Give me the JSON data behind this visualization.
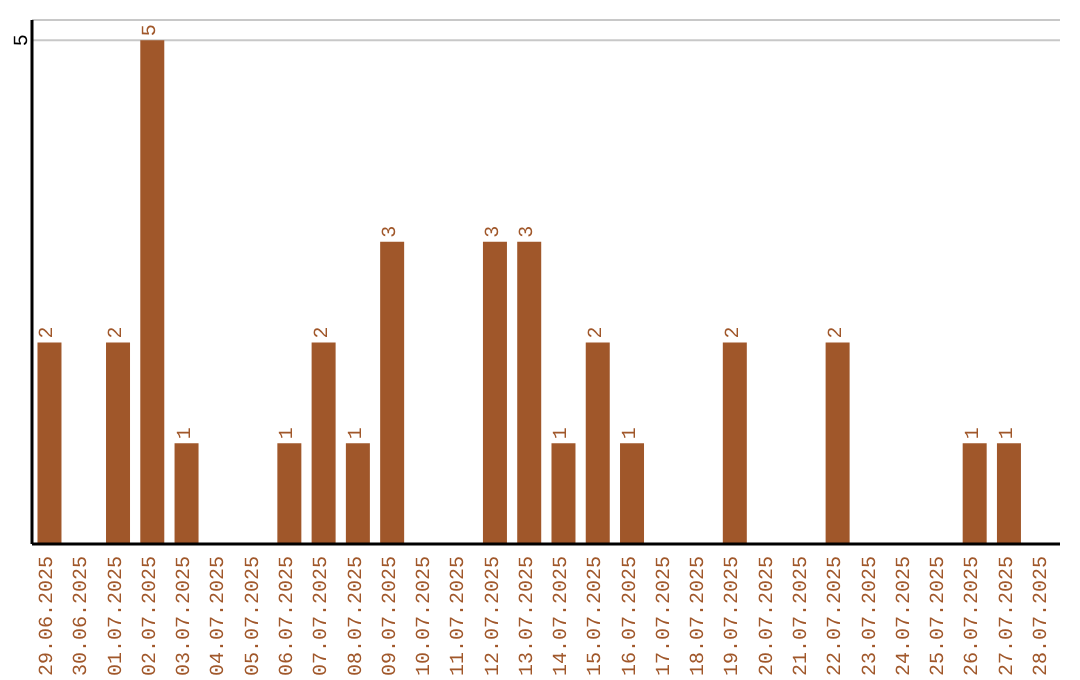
{
  "chart_data": {
    "type": "bar",
    "categories": [
      "29.06.2025",
      "30.06.2025",
      "01.07.2025",
      "02.07.2025",
      "03.07.2025",
      "04.07.2025",
      "05.07.2025",
      "06.07.2025",
      "07.07.2025",
      "08.07.2025",
      "09.07.2025",
      "10.07.2025",
      "11.07.2025",
      "12.07.2025",
      "13.07.2025",
      "14.07.2025",
      "15.07.2025",
      "16.07.2025",
      "17.07.2025",
      "18.07.2025",
      "19.07.2025",
      "20.07.2025",
      "21.07.2025",
      "22.07.2025",
      "23.07.2025",
      "24.07.2025",
      "25.07.2025",
      "26.07.2025",
      "27.07.2025",
      "28.07.2025"
    ],
    "values": [
      2,
      0,
      2,
      5,
      1,
      0,
      0,
      1,
      2,
      1,
      3,
      0,
      0,
      3,
      3,
      1,
      2,
      1,
      0,
      0,
      2,
      0,
      0,
      2,
      0,
      0,
      0,
      1,
      1,
      0
    ],
    "value_labels": [
      "2",
      null,
      "2",
      "5",
      "1",
      null,
      null,
      "1",
      "2",
      "1",
      "3",
      null,
      null,
      "3",
      "3",
      "1",
      "2",
      "1",
      null,
      null,
      "2",
      null,
      null,
      "2",
      null,
      null,
      null,
      "1",
      "1",
      null
    ],
    "color": "#a0572a",
    "ylim": [
      0,
      5.2
    ],
    "yticks": [
      5
    ],
    "grid": "y"
  }
}
